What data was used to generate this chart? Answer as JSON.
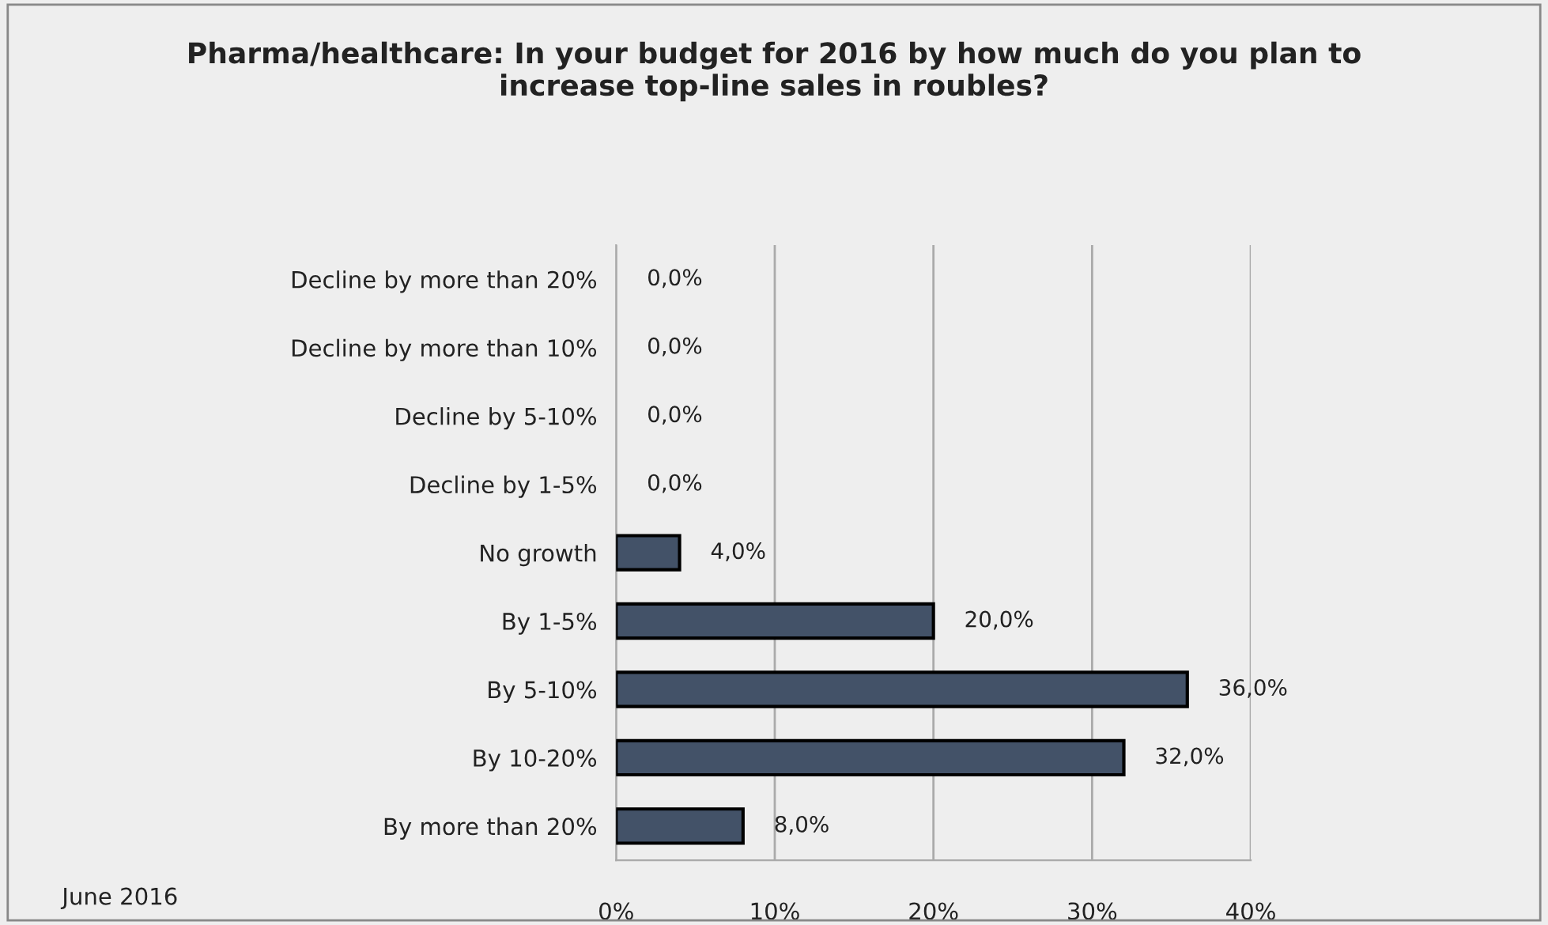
{
  "chart_data": {
    "type": "bar",
    "orientation": "horizontal",
    "title": "Pharma/healthcare: In your budget for 2016 by how much do you plan to\nincrease top-line sales in roubles?",
    "categories": [
      "Decline by more than 20%",
      "Decline by more than 10%",
      "Decline by 5-10%",
      "Decline by 1-5%",
      "No growth",
      "By 1-5%",
      "By 5-10%",
      "By 10-20%",
      "By more than 20%"
    ],
    "values": [
      0,
      0,
      0,
      0,
      4,
      20,
      36,
      32,
      8
    ],
    "value_labels": [
      "0,0%",
      "0,0%",
      "0,0%",
      "0,0%",
      "4,0%",
      "20,0%",
      "36,0%",
      "32,0%",
      "8,0%"
    ],
    "color": "#435268",
    "xlim": [
      0,
      40
    ],
    "xticks": [
      {
        "value": 0,
        "label": "0%"
      },
      {
        "value": 10,
        "label": "10%"
      },
      {
        "value": 20,
        "label": "20%"
      },
      {
        "value": 30,
        "label": "30%"
      },
      {
        "value": 40,
        "label": "40%"
      }
    ],
    "grid": "x",
    "legend": false,
    "annotations": [
      "June 2016"
    ]
  }
}
